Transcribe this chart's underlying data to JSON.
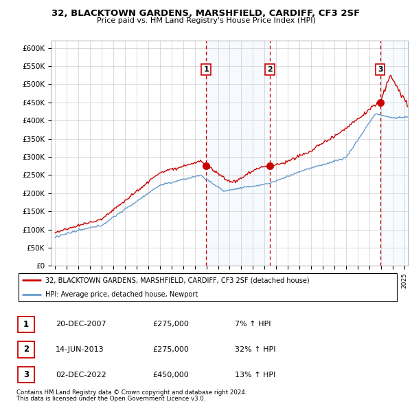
{
  "title": "32, BLACKTOWN GARDENS, MARSHFIELD, CARDIFF, CF3 2SF",
  "subtitle": "Price paid vs. HM Land Registry's House Price Index (HPI)",
  "ylabel_ticks": [
    "£0",
    "£50K",
    "£100K",
    "£150K",
    "£200K",
    "£250K",
    "£300K",
    "£350K",
    "£400K",
    "£450K",
    "£500K",
    "£550K",
    "£600K"
  ],
  "ytick_values": [
    0,
    50000,
    100000,
    150000,
    200000,
    250000,
    300000,
    350000,
    400000,
    450000,
    500000,
    550000,
    600000
  ],
  "xlim_start": 1994.7,
  "xlim_end": 2025.3,
  "ylim_min": 0,
  "ylim_max": 620000,
  "sale_dates": [
    2007.97,
    2013.45,
    2022.92
  ],
  "sale_prices": [
    275000,
    275000,
    450000
  ],
  "sale_labels": [
    "1",
    "2",
    "3"
  ],
  "legend_house_label": "32, BLACKTOWN GARDENS, MARSHFIELD, CARDIFF, CF3 2SF (detached house)",
  "legend_hpi_label": "HPI: Average price, detached house, Newport",
  "table_rows": [
    [
      "1",
      "20-DEC-2007",
      "£275,000",
      "7% ↑ HPI"
    ],
    [
      "2",
      "14-JUN-2013",
      "£275,000",
      "32% ↑ HPI"
    ],
    [
      "3",
      "02-DEC-2022",
      "£450,000",
      "13% ↑ HPI"
    ]
  ],
  "footnote1": "Contains HM Land Registry data © Crown copyright and database right 2024.",
  "footnote2": "This data is licensed under the Open Government Licence v3.0.",
  "hpi_color": "#6699cc",
  "house_color": "#cc0000",
  "dashed_color": "#cc0000",
  "shaded_color": "#ddeeff",
  "background_color": "#ffffff",
  "grid_color": "#cccccc"
}
